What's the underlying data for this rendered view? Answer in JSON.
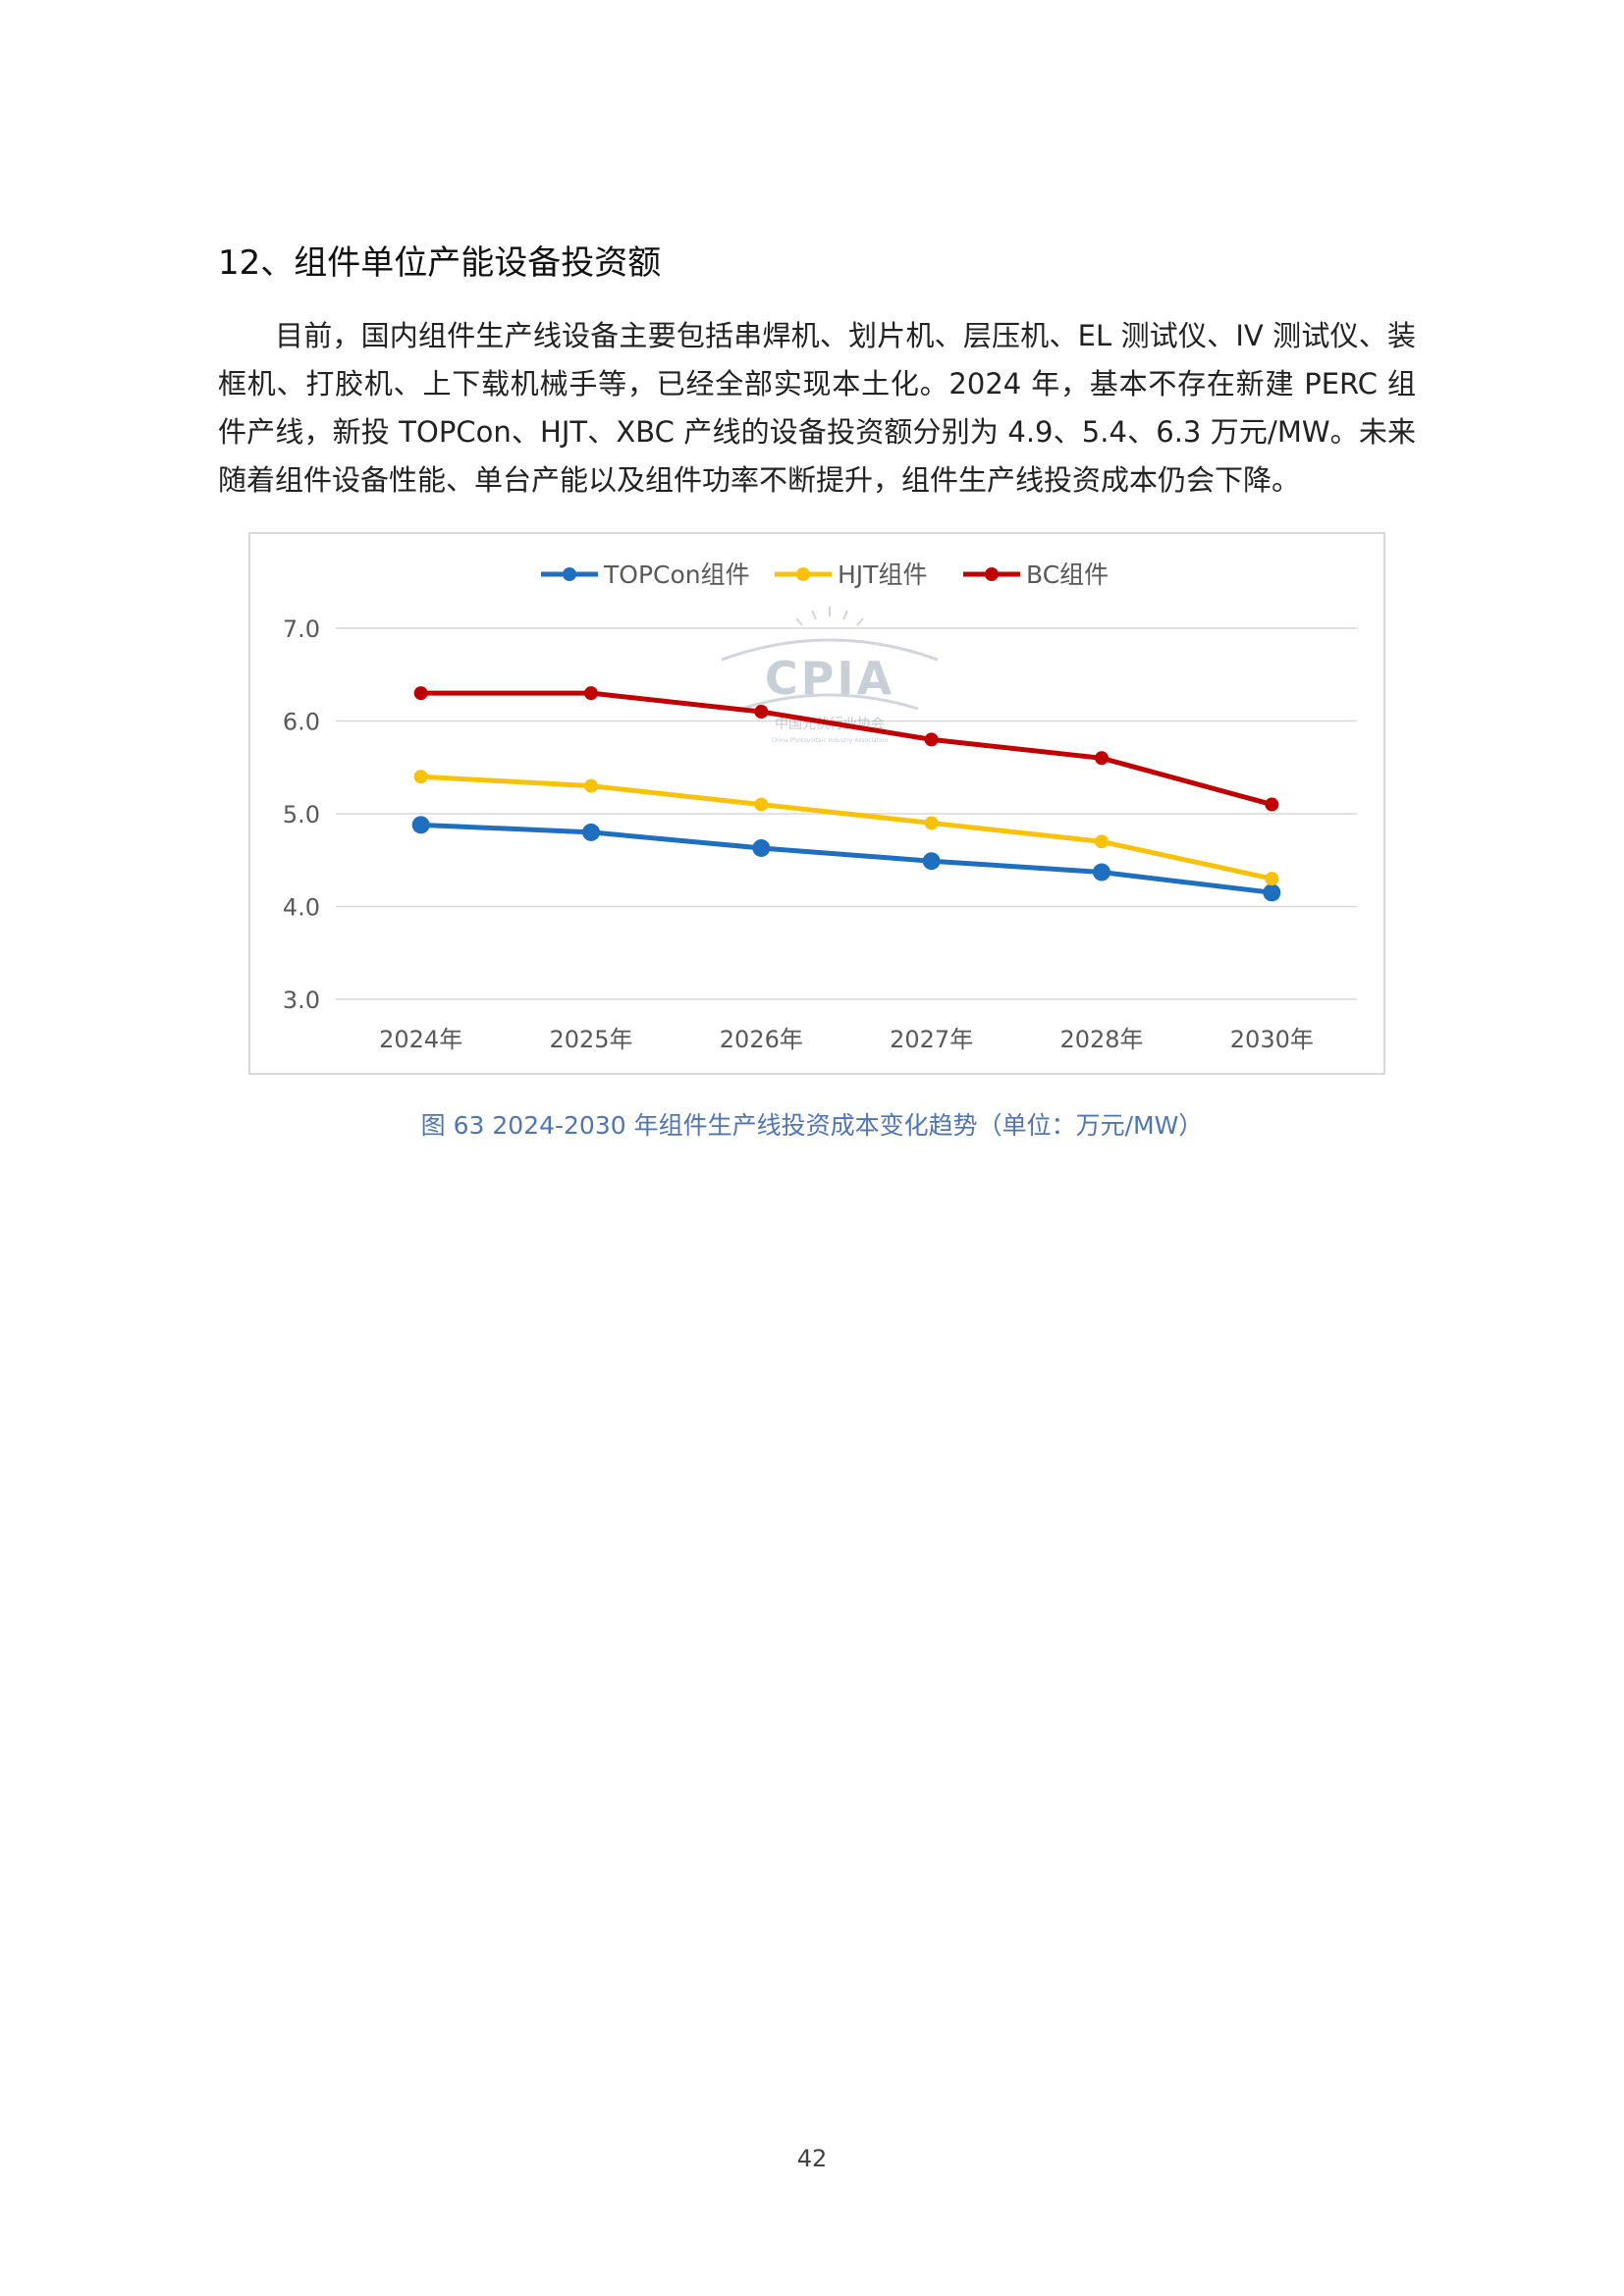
{
  "section_heading": "12、组件单位产能设备投资额",
  "body_paragraph": "目前，国内组件生产线设备主要包括串焊机、划片机、层压机、EL 测试仪、IV 测试仪、装框机、打胶机、上下载机械手等，已经全部实现本土化。2024 年，基本不存在新建 PERC 组件产线，新投 TOPCon、HJT、XBC 产线的设备投资额分别为 4.9、5.4、6.3 万元/MW。未来随着组件设备性能、单台产能以及组件功率不断提升，组件生产线投资成本仍会下降。",
  "watermark": {
    "brand": "CPIA",
    "org_name": "中国光伏行业协会",
    "org_name_en": "China Photovoltaic Industry Association"
  },
  "chart_data": {
    "type": "line",
    "categories": [
      "2024年",
      "2025年",
      "2026年",
      "2027年",
      "2028年",
      "2030年"
    ],
    "series": [
      {
        "name": "TOPCon组件",
        "color": "#1f6fc1",
        "values": [
          4.88,
          4.8,
          4.63,
          4.49,
          4.37,
          4.15
        ]
      },
      {
        "name": "HJT组件",
        "color": "#f9c20a",
        "values": [
          5.4,
          5.3,
          5.1,
          4.9,
          4.7,
          4.3
        ]
      },
      {
        "name": "BC组件",
        "color": "#c00000",
        "values": [
          6.3,
          6.3,
          6.1,
          5.8,
          5.6,
          5.1
        ]
      }
    ],
    "yticks": [
      "3.0",
      "4.0",
      "5.0",
      "6.0",
      "7.0"
    ],
    "ylim": [
      3.0,
      7.0
    ],
    "grid": true,
    "legend_position": "top-center",
    "title": "",
    "xlabel": "",
    "ylabel": ""
  },
  "caption": "图 63 2024-2030 年组件生产线投资成本变化趋势（单位：万元/MW）",
  "page_number": "42"
}
